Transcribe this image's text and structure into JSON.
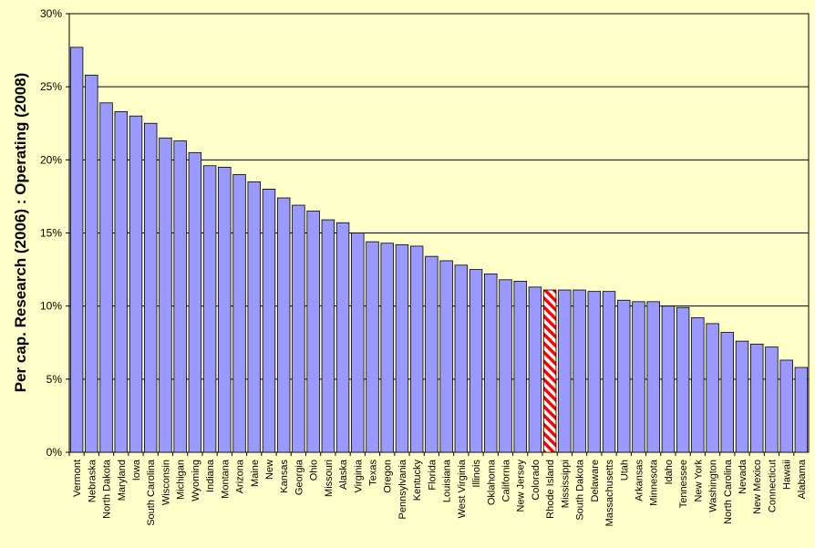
{
  "chart_data": {
    "type": "bar",
    "title": "",
    "xlabel": "",
    "ylabel": "Per cap. Research (2006) : Operating (2008)",
    "ylim": [
      0,
      30
    ],
    "yticks": [
      "0%",
      "5%",
      "10%",
      "15%",
      "20%",
      "25%",
      "30%"
    ],
    "grid": "horizontal",
    "highlight": "Rhode Island",
    "colors": {
      "bar": "#9999FF",
      "highlight": "#FF0000",
      "background": "#FFFFC9"
    },
    "categories": [
      "Vermont",
      "Nebraska",
      "North Dakota",
      "Maryland",
      "Iowa",
      "South Carolina",
      "Wisconsin",
      "Michigan",
      "Wyoming",
      "Indiana",
      "Montana",
      "Arizona",
      "Maine",
      "New",
      "Kansas",
      "Georgia",
      "Ohio",
      "Missouri",
      "Alaska",
      "Virginia",
      "Texas",
      "Oregon",
      "Pennsylvania",
      "Kentucky",
      "Florida",
      "Louisiana",
      "West Virginia",
      "Illinois",
      "Oklahoma",
      "California",
      "New Jersey",
      "Colorado",
      "Rhode Island",
      "Mississippi",
      "South Dakota",
      "Delaware",
      "Massachusetts",
      "Utah",
      "Arkansas",
      "Minnesota",
      "Idaho",
      "Tennessee",
      "New York",
      "Washington",
      "North Carolina",
      "Nevada",
      "New Mexico",
      "Connecticut",
      "Hawaii",
      "Alabama"
    ],
    "values": [
      27.7,
      25.8,
      23.9,
      23.3,
      23.0,
      22.5,
      21.5,
      21.3,
      20.5,
      19.6,
      19.5,
      19.0,
      18.5,
      18.0,
      17.4,
      16.9,
      16.5,
      15.9,
      15.7,
      15.0,
      14.4,
      14.3,
      14.2,
      14.1,
      13.4,
      13.1,
      12.8,
      12.5,
      12.2,
      11.8,
      11.7,
      11.3,
      11.1,
      11.1,
      11.1,
      11.0,
      11.0,
      10.4,
      10.3,
      10.3,
      10.0,
      9.9,
      9.2,
      8.8,
      8.2,
      7.6,
      7.4,
      7.2,
      6.3,
      5.8
    ]
  }
}
